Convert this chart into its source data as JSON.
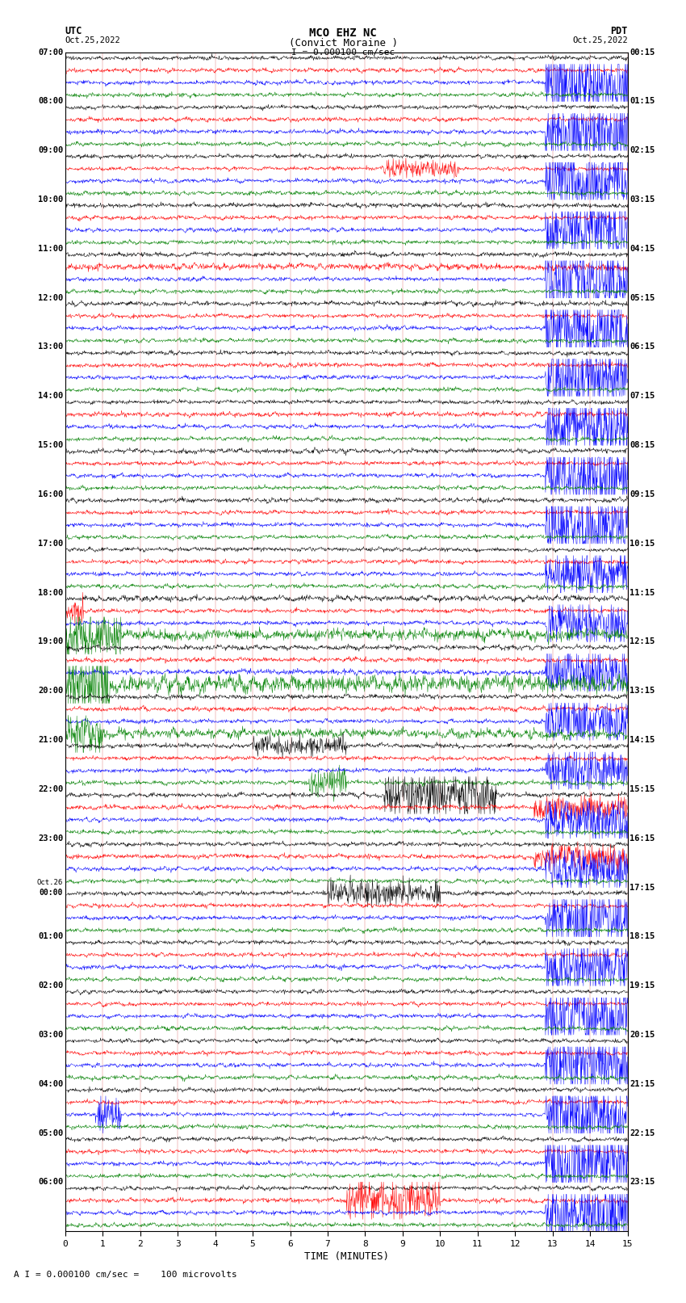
{
  "title_line1": "MCO EHZ NC",
  "title_line2": "(Convict Moraine )",
  "scale_label": "I = 0.000100 cm/sec",
  "bottom_label": "A I = 0.000100 cm/sec =    100 microvolts",
  "xlabel": "TIME (MINUTES)",
  "xlim": [
    0,
    15
  ],
  "xticks": [
    0,
    1,
    2,
    3,
    4,
    5,
    6,
    7,
    8,
    9,
    10,
    11,
    12,
    13,
    14,
    15
  ],
  "background_color": "#ffffff",
  "trace_colors": [
    "black",
    "red",
    "blue",
    "green"
  ],
  "utc_times": [
    "07:00",
    "08:00",
    "09:00",
    "10:00",
    "11:00",
    "12:00",
    "13:00",
    "14:00",
    "15:00",
    "16:00",
    "17:00",
    "18:00",
    "19:00",
    "20:00",
    "21:00",
    "22:00",
    "23:00",
    "Oct.26\n00:00",
    "01:00",
    "02:00",
    "03:00",
    "04:00",
    "05:00",
    "06:00"
  ],
  "pdt_times": [
    "00:15",
    "01:15",
    "02:15",
    "03:15",
    "04:15",
    "05:15",
    "06:15",
    "07:15",
    "08:15",
    "09:15",
    "10:15",
    "11:15",
    "12:15",
    "13:15",
    "14:15",
    "15:15",
    "16:15",
    "17:15",
    "18:15",
    "19:15",
    "20:15",
    "21:15",
    "22:15",
    "23:15"
  ],
  "figsize": [
    8.5,
    16.13
  ],
  "dpi": 100,
  "num_rows": 24
}
